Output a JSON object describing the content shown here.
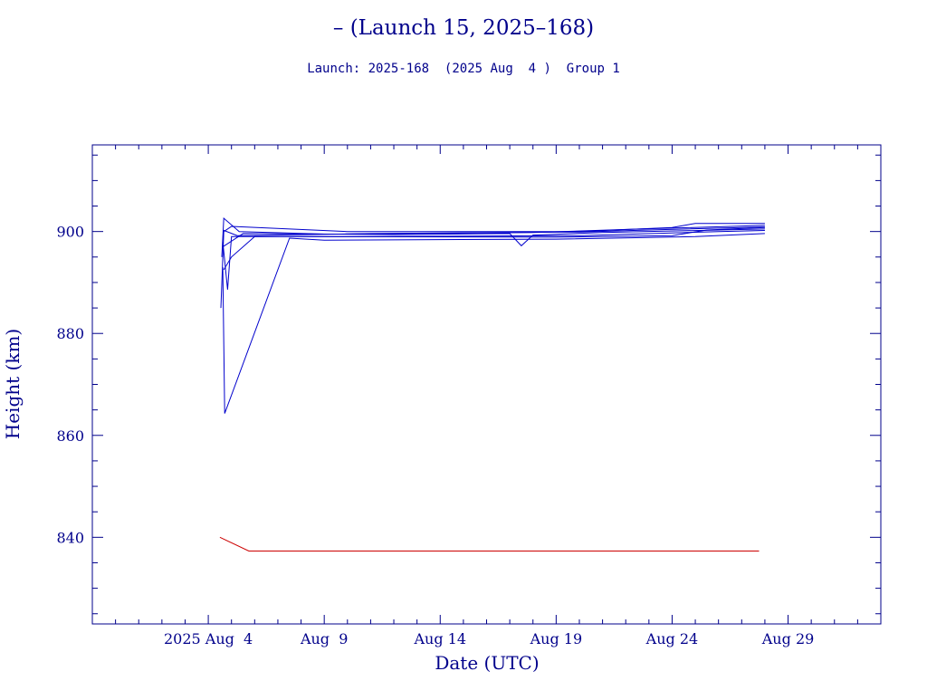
{
  "chart_data": {
    "type": "line",
    "title": "– (Launch 15, 2025–168)",
    "subtitle": "Launch: 2025-168  (2025 Aug  4 )  Group 1",
    "xlabel": "Date (UTC)",
    "ylabel": "Height (km)",
    "xlim": [
      "2025-07-30",
      "2025-09-02"
    ],
    "ylim": [
      823,
      917
    ],
    "x_ticks": [
      {
        "date": "2025-08-04",
        "label": "2025 Aug  4"
      },
      {
        "date": "2025-08-09",
        "label": "Aug  9"
      },
      {
        "date": "2025-08-14",
        "label": "Aug 14"
      },
      {
        "date": "2025-08-19",
        "label": "Aug 19"
      },
      {
        "date": "2025-08-24",
        "label": "Aug 24"
      },
      {
        "date": "2025-08-29",
        "label": "Aug 29"
      }
    ],
    "y_ticks": [
      840,
      860,
      880,
      900
    ],
    "grid": false,
    "colors": {
      "text": "#00008b",
      "axis": "#00008b",
      "series": "#0000cc",
      "reference": "#cc0000"
    },
    "series": [
      {
        "color": "#0000cc",
        "x": [
          "2025-08-04 13:00",
          "2025-08-04 16:00",
          "2025-08-05 00:00",
          "2025-08-10 00:00",
          "2025-08-20 00:00",
          "2025-08-24 00:00",
          "2025-08-25 00:00",
          "2025-08-28 00:00"
        ],
        "y": [
          885,
          900,
          901,
          900,
          900,
          900.8,
          901.6,
          901.6
        ]
      },
      {
        "color": "#0000cc",
        "x": [
          "2025-08-04 14:00",
          "2025-08-04 16:00",
          "2025-08-05 08:00",
          "2025-08-09 00:00",
          "2025-08-18 00:00",
          "2025-08-22 00:00",
          "2025-08-28 00:00"
        ],
        "y": [
          895,
          902.6,
          900,
          899.5,
          899.8,
          900.4,
          901.2
        ]
      },
      {
        "color": "#0000cc",
        "x": [
          "2025-08-04 15:00",
          "2025-08-04 20:00",
          "2025-08-05 00:00",
          "2025-08-09 00:00",
          "2025-08-20 00:00",
          "2025-08-26 00:00",
          "2025-08-28 00:00"
        ],
        "y": [
          898,
          888.6,
          899,
          899,
          899.2,
          900,
          900.2
        ]
      },
      {
        "color": "#0000cc",
        "x": [
          "2025-08-04 15:00",
          "2025-08-04 17:00",
          "2025-08-07 12:00",
          "2025-08-09 00:00",
          "2025-08-19 00:00",
          "2025-08-25 00:00",
          "2025-08-28 00:00"
        ],
        "y": [
          893,
          864.3,
          898.7,
          898.3,
          898.5,
          899,
          899.6
        ]
      },
      {
        "color": "#0000cc",
        "x": [
          "2025-08-04 16:00",
          "2025-08-05 00:00",
          "2025-08-06 00:00",
          "2025-08-08 00:00",
          "2025-08-19 00:00",
          "2025-08-24 00:00",
          "2025-08-25 12:00",
          "2025-08-28 00:00"
        ],
        "y": [
          892.5,
          895,
          899,
          899,
          898.9,
          899.2,
          900.3,
          900.8
        ]
      },
      {
        "color": "#0000cc",
        "x": [
          "2025-08-04 15:00",
          "2025-08-05 12:00",
          "2025-08-12 00:00",
          "2025-08-17 00:00",
          "2025-08-17 12:00",
          "2025-08-18 00:00",
          "2025-08-21 00:00",
          "2025-08-28 00:00"
        ],
        "y": [
          897,
          899.6,
          899.4,
          899.6,
          897.2,
          899.3,
          899.8,
          900.5
        ]
      },
      {
        "color": "#0000cc",
        "x": [
          "2025-08-04 15:00",
          "2025-08-05 06:00",
          "2025-08-11 00:00",
          "2025-08-20 00:00",
          "2025-08-23 00:00",
          "2025-08-28 00:00"
        ],
        "y": [
          900.3,
          899.2,
          899.6,
          899.9,
          900.3,
          900.9
        ]
      }
    ],
    "reference_line": {
      "color": "#cc0000",
      "x": [
        "2025-08-04 12:00",
        "2025-08-05 18:00",
        "2025-08-27 18:00"
      ],
      "y": [
        840,
        837.3,
        837.3
      ]
    }
  }
}
